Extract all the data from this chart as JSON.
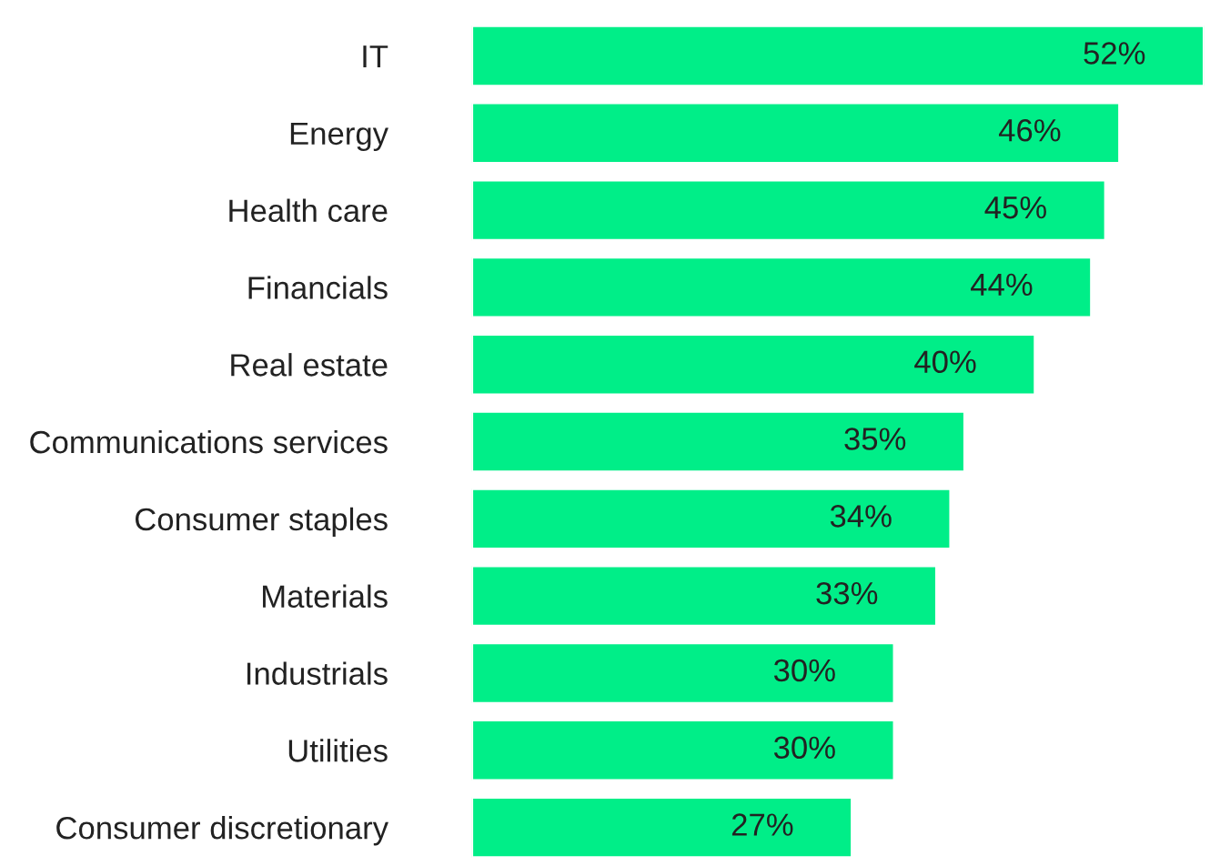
{
  "chart_data": {
    "type": "bar",
    "orientation": "horizontal",
    "categories": [
      "IT",
      "Energy",
      "Health care",
      "Financials",
      "Real estate",
      "Communications services",
      "Consumer staples",
      "Materials",
      "Industrials",
      "Utilities",
      "Consumer discretionary"
    ],
    "values": [
      52,
      46,
      45,
      44,
      40,
      35,
      34,
      33,
      30,
      30,
      27
    ],
    "value_labels": [
      "52%",
      "46%",
      "45%",
      "44%",
      "40%",
      "35%",
      "34%",
      "33%",
      "30%",
      "30%",
      "27%"
    ],
    "color": "#00ee88"
  }
}
